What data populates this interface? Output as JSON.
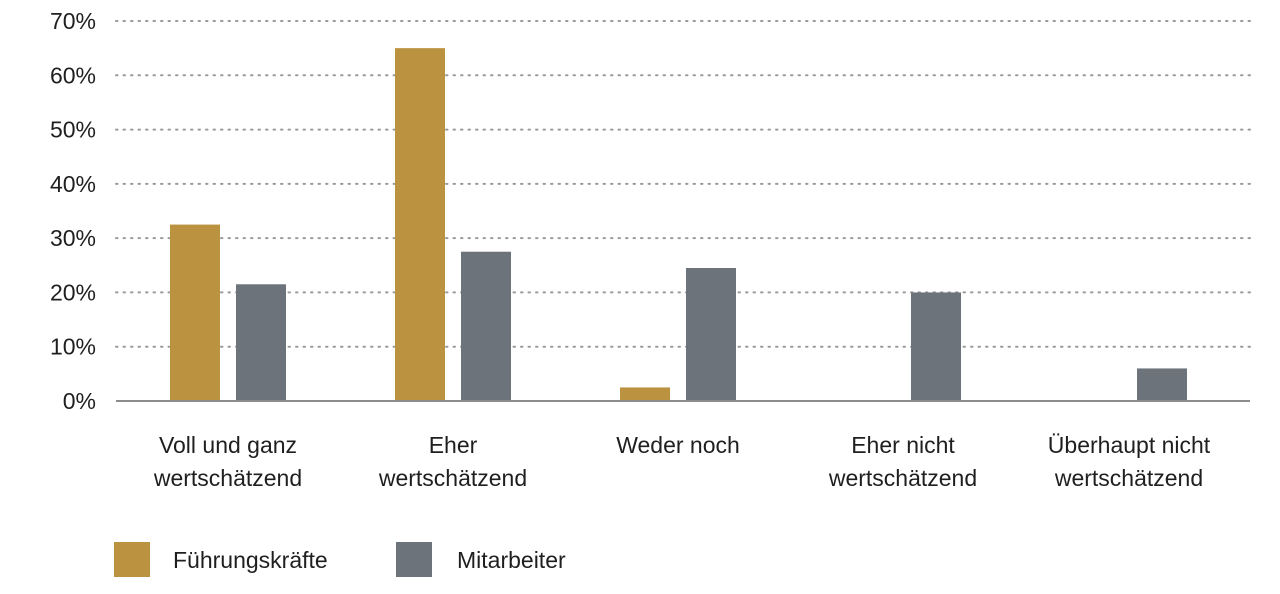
{
  "chart_data": {
    "type": "bar",
    "categories": [
      [
        "Voll und ganz",
        "wertschätzend"
      ],
      [
        "Eher",
        "wertschätzend"
      ],
      [
        "Weder noch"
      ],
      [
        "Eher nicht",
        "wertschätzend"
      ],
      [
        "Überhaupt nicht",
        "wertschätzend"
      ]
    ],
    "series": [
      {
        "name": "Führungskräfte",
        "color": "#bb9340",
        "values": [
          32.5,
          65,
          2.5,
          0,
          0
        ]
      },
      {
        "name": "Mitarbeiter",
        "color": "#6c737a",
        "values": [
          21.5,
          27.5,
          24.5,
          20,
          6
        ]
      }
    ],
    "ylim": [
      0,
      70
    ],
    "yticks": [
      0,
      10,
      20,
      30,
      40,
      50,
      60,
      70
    ],
    "ytick_labels": [
      "0%",
      "10%",
      "20%",
      "30%",
      "40%",
      "50%",
      "60%",
      "70%"
    ],
    "grid": true,
    "grid_style": "dotted",
    "legend_position": "bottom-left",
    "title": "",
    "xlabel": "",
    "ylabel": ""
  }
}
